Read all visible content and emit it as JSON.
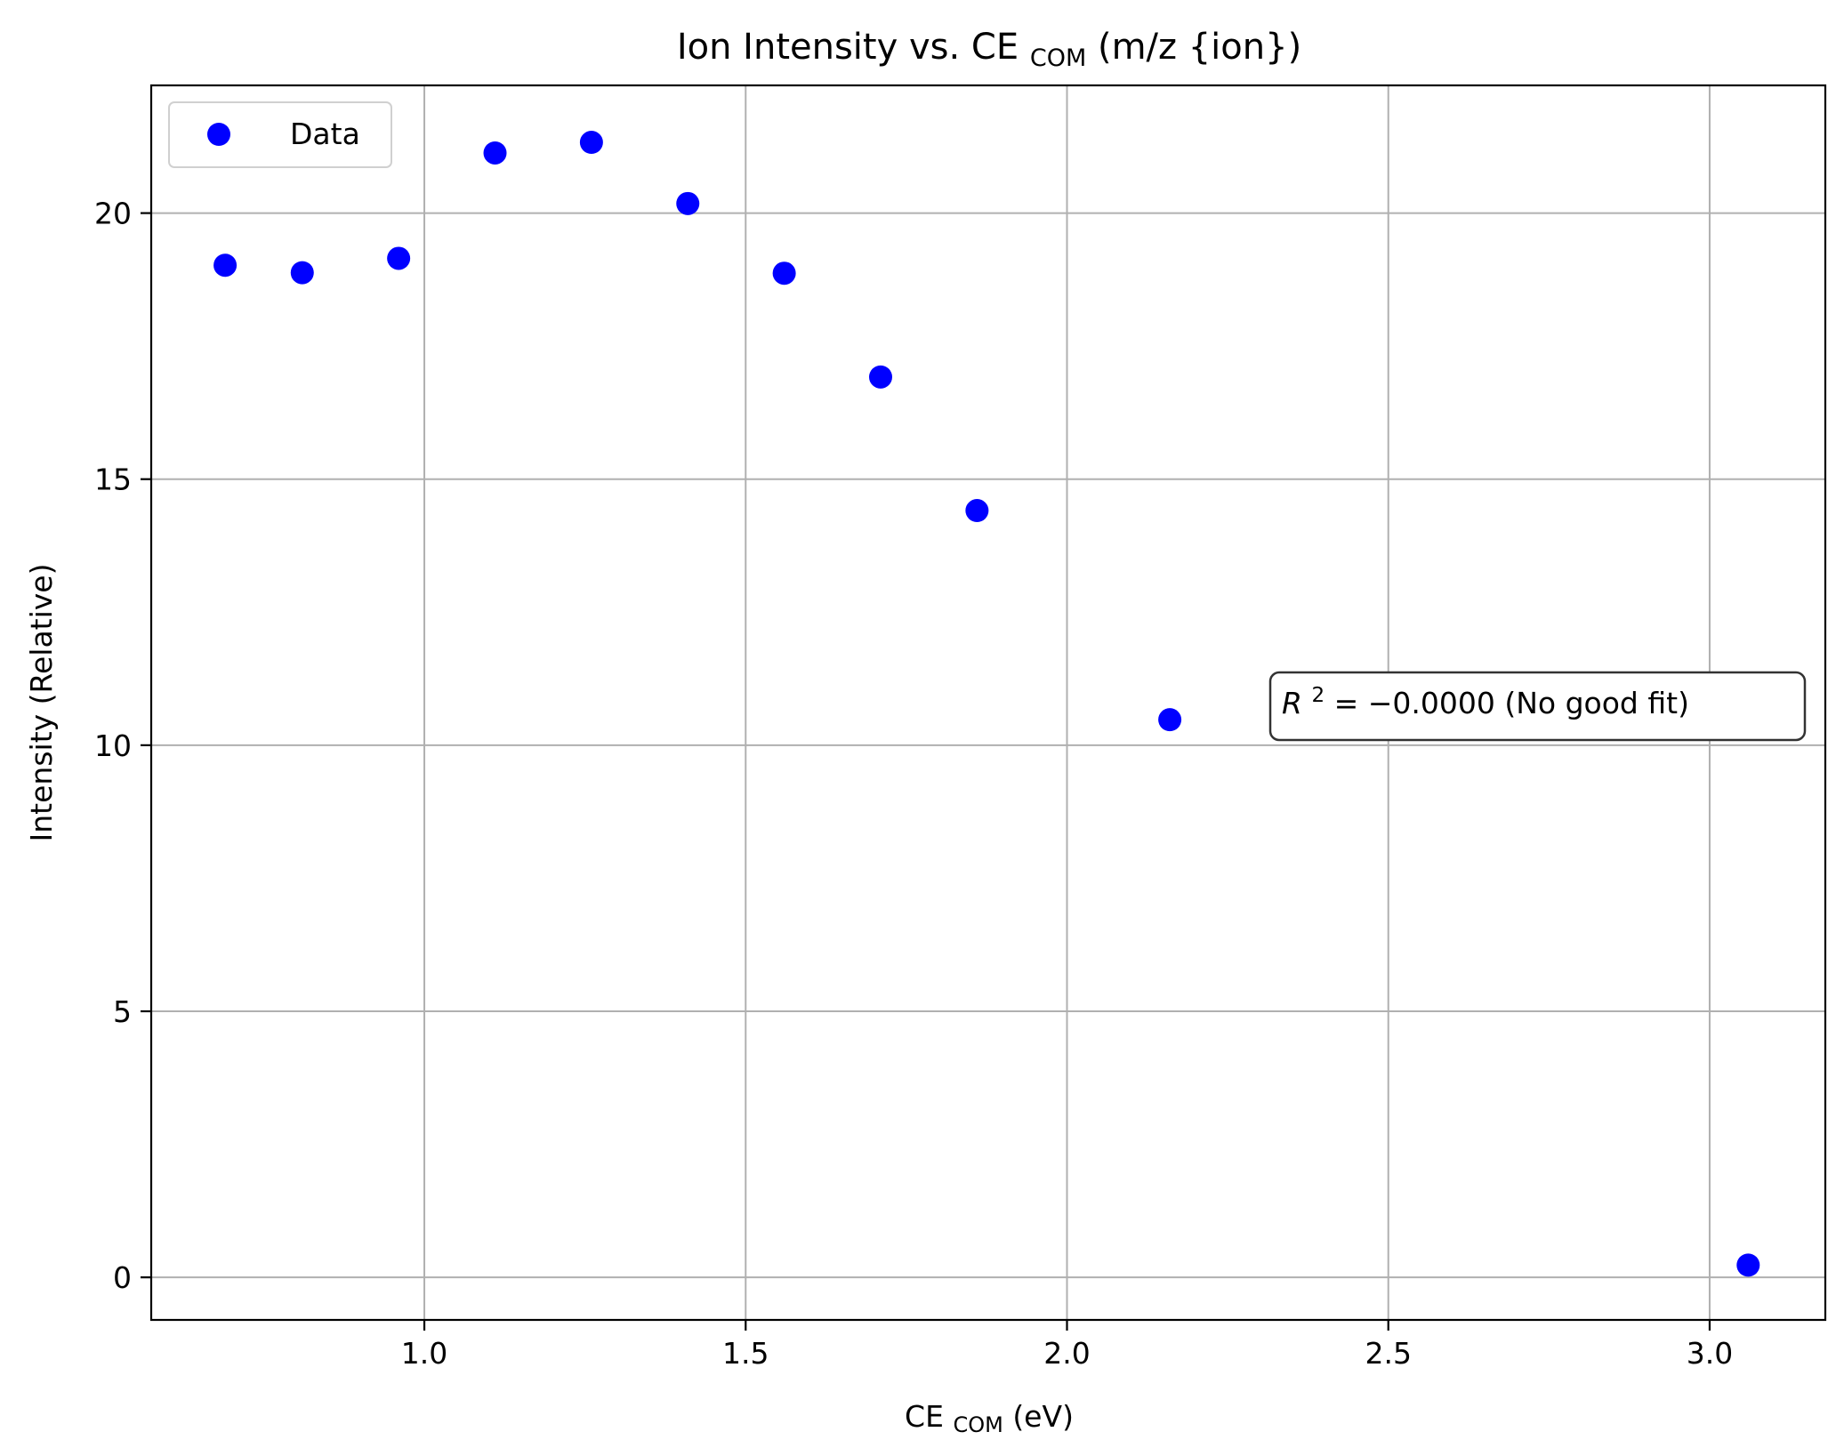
{
  "chart_data": {
    "type": "scatter",
    "title": {
      "prefix": "Ion Intensity vs. CE",
      "subscript": "COM",
      "suffix": " (m/z {ion})"
    },
    "xlabel": {
      "prefix": "CE",
      "subscript": "COM",
      "suffix": " (eV)"
    },
    "ylabel": "Intensity (Relative)",
    "xlim": [
      0.575,
      3.18
    ],
    "ylim": [
      -0.8,
      22.4
    ],
    "x_ticks": [
      1.0,
      1.5,
      2.0,
      2.5,
      3.0
    ],
    "x_tick_labels": [
      "1.0",
      "1.5",
      "2.0",
      "2.5",
      "3.0"
    ],
    "y_ticks": [
      0,
      5,
      10,
      15,
      20
    ],
    "y_tick_labels": [
      "0",
      "5",
      "10",
      "15",
      "20"
    ],
    "grid": true,
    "legend_position": "top-left",
    "series": [
      {
        "name": "Data",
        "color": "#0000ff",
        "marker": "circle",
        "points": [
          {
            "x": 0.69,
            "y": 19.02
          },
          {
            "x": 0.81,
            "y": 18.88
          },
          {
            "x": 0.96,
            "y": 19.15
          },
          {
            "x": 1.11,
            "y": 21.13
          },
          {
            "x": 1.26,
            "y": 21.33
          },
          {
            "x": 1.41,
            "y": 20.18
          },
          {
            "x": 1.56,
            "y": 18.87
          },
          {
            "x": 1.71,
            "y": 16.92
          },
          {
            "x": 1.86,
            "y": 14.41
          },
          {
            "x": 2.16,
            "y": 10.48
          },
          {
            "x": 3.06,
            "y": 0.23
          }
        ]
      }
    ],
    "annotation": {
      "variable": "R",
      "exponent": "2",
      "equals": " = ",
      "value": "−0.0000",
      "note": " (No good fit)"
    }
  }
}
